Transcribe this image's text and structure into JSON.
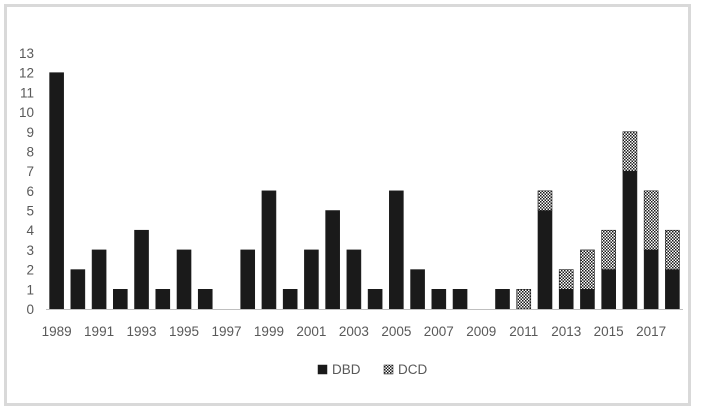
{
  "chart_data": {
    "type": "bar",
    "stacked": true,
    "categories": [
      "1989",
      "1990",
      "1991",
      "1992",
      "1993",
      "1994",
      "1995",
      "1996",
      "1997",
      "1998",
      "1999",
      "2000",
      "2001",
      "2002",
      "2003",
      "2004",
      "2005",
      "2006",
      "2007",
      "2008",
      "2009",
      "2010",
      "2011",
      "2012",
      "2013",
      "2014",
      "2015",
      "2016",
      "2017",
      "2018"
    ],
    "x_tick_labels": [
      "1989",
      "1991",
      "1993",
      "1995",
      "1997",
      "1999",
      "2001",
      "2003",
      "2005",
      "2007",
      "2009",
      "2011",
      "2013",
      "2015",
      "2017"
    ],
    "series": [
      {
        "name": "DBD",
        "values": [
          12,
          2,
          3,
          1,
          4,
          1,
          3,
          1,
          0,
          3,
          6,
          1,
          3,
          5,
          3,
          1,
          6,
          2,
          1,
          1,
          0,
          1,
          0,
          5,
          1,
          1,
          2,
          7,
          3,
          2
        ],
        "color": "#1a1a1a",
        "pattern": "solid"
      },
      {
        "name": "DCD",
        "values": [
          0,
          0,
          0,
          0,
          0,
          0,
          0,
          0,
          0,
          0,
          0,
          0,
          0,
          0,
          0,
          0,
          0,
          0,
          0,
          0,
          0,
          0,
          1,
          1,
          1,
          2,
          2,
          2,
          3,
          2
        ],
        "color": "#ffffff",
        "pattern": "checker"
      }
    ],
    "ylim": [
      0,
      13
    ],
    "y_ticks": [
      0,
      1,
      2,
      3,
      4,
      5,
      6,
      7,
      8,
      9,
      10,
      11,
      12,
      13
    ],
    "title": "",
    "xlabel": "",
    "ylabel": "",
    "grid": false,
    "legend_position": "bottom"
  }
}
